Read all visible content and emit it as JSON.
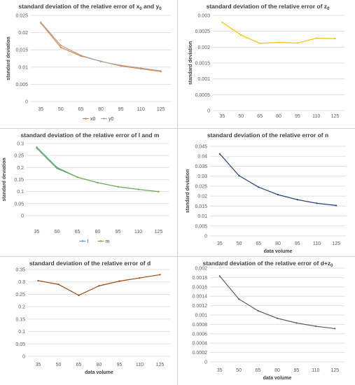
{
  "chart_data": [
    {
      "type": "line",
      "title_main": "standard deviation of the relative error of  x",
      "title_sub1": "0",
      "title_mid": " and y",
      "title_sub2": "0",
      "xlabel": "",
      "ylabel": "standard deviation",
      "categories": [
        "35",
        "50",
        "65",
        "80",
        "95",
        "110",
        "125"
      ],
      "ylim": [
        0,
        0.025
      ],
      "yticks": [
        "0",
        "0.005",
        "0.01",
        "0.015",
        "0.02",
        "0.025"
      ],
      "legend": "bottom",
      "series": [
        {
          "name": "x0",
          "color": "#ed7d31",
          "values": [
            0.0228,
            0.0157,
            0.0132,
            0.0117,
            0.0103,
            0.0095,
            0.0087
          ]
        },
        {
          "name": "y0",
          "color": "#a5a5a5",
          "values": [
            0.023,
            0.0163,
            0.0134,
            0.0116,
            0.0105,
            0.0097,
            0.0089
          ]
        }
      ]
    },
    {
      "type": "line",
      "title_main": "standard deviation of the relative error of z",
      "title_sub1": "0",
      "title_mid": "",
      "title_sub2": "",
      "xlabel": "",
      "ylabel": "standard deviation",
      "categories": [
        "35",
        "50",
        "65",
        "80",
        "95",
        "110",
        "125"
      ],
      "ylim": [
        0,
        0.003
      ],
      "yticks": [
        "0",
        "0.0005",
        "0.001",
        "0.0015",
        "0.002",
        "0.0025",
        "0.003"
      ],
      "legend": "none",
      "series": [
        {
          "name": "",
          "color": "#ffc000",
          "values": [
            0.00278,
            0.00238,
            0.00212,
            0.00215,
            0.00213,
            0.00228,
            0.00227
          ]
        }
      ]
    },
    {
      "type": "line",
      "title_main": "standard deviation of the relative error of l and m",
      "title_sub1": "",
      "title_mid": "",
      "title_sub2": "",
      "xlabel": "",
      "ylabel": "standard deviation",
      "categories": [
        "35",
        "50",
        "65",
        "80",
        "95",
        "110",
        "125"
      ],
      "ylim": [
        0,
        0.3
      ],
      "yticks": [
        "0",
        "0.05",
        "0.1",
        "0.15",
        "0.2",
        "0.25",
        "0.3"
      ],
      "legend": "bottom",
      "series": [
        {
          "name": "l",
          "color": "#5b9bd5",
          "values": [
            0.285,
            0.2,
            0.16,
            0.137,
            0.12,
            0.109,
            0.1
          ]
        },
        {
          "name": "m",
          "color": "#70ad47",
          "values": [
            0.28,
            0.196,
            0.16,
            0.137,
            0.12,
            0.109,
            0.1
          ]
        }
      ]
    },
    {
      "type": "line",
      "title_main": "standard deviation of the relative error of n",
      "title_sub1": "",
      "title_mid": "",
      "title_sub2": "",
      "xlabel": "data volume",
      "ylabel": "standard deviation",
      "categories": [
        "35",
        "50",
        "65",
        "80",
        "95",
        "110",
        "125"
      ],
      "ylim": [
        0,
        0.045
      ],
      "yticks": [
        "0",
        "0.005",
        "0.01",
        "0.015",
        "0.02",
        "0.025",
        "0.03",
        "0.035",
        "0.04",
        "0.045"
      ],
      "legend": "none",
      "series": [
        {
          "name": "",
          "color": "#264478",
          "values": [
            0.0412,
            0.0302,
            0.0245,
            0.0207,
            0.0182,
            0.0164,
            0.0153
          ]
        }
      ]
    },
    {
      "type": "line",
      "title_main": "standard deviation of the relative error of d",
      "title_sub1": "",
      "title_mid": "",
      "title_sub2": "",
      "xlabel": "data volume",
      "ylabel": "",
      "categories": [
        "35",
        "50",
        "65",
        "80",
        "95",
        "110",
        "125"
      ],
      "ylim": [
        0,
        0.35
      ],
      "yticks": [
        "0",
        "0.05",
        "0.1",
        "0.15",
        "0.2",
        "0.25",
        "0.3",
        "0.35"
      ],
      "legend": "none",
      "series": [
        {
          "name": "",
          "color": "#9e480e",
          "values": [
            0.305,
            0.29,
            0.246,
            0.284,
            0.303,
            0.316,
            0.329
          ]
        }
      ]
    },
    {
      "type": "line",
      "title_main": "standard deviation of the relative error of d+z",
      "title_sub1": "0",
      "title_mid": "",
      "title_sub2": "",
      "xlabel": "data volume",
      "ylabel": "",
      "categories": [
        "35",
        "50",
        "65",
        "80",
        "95",
        "110",
        "125"
      ],
      "ylim": [
        0,
        0.002
      ],
      "yticks": [
        "0",
        "0.0002",
        "0.0004",
        "0.0006",
        "0.0008",
        "0.001",
        "0.0012",
        "0.0014",
        "0.0016",
        "0.0018",
        "0.002"
      ],
      "legend": "none",
      "series": [
        {
          "name": "",
          "color": "#595959",
          "values": [
            0.00183,
            0.00134,
            0.00109,
            0.00093,
            0.00083,
            0.00076,
            0.00071
          ]
        }
      ]
    }
  ]
}
